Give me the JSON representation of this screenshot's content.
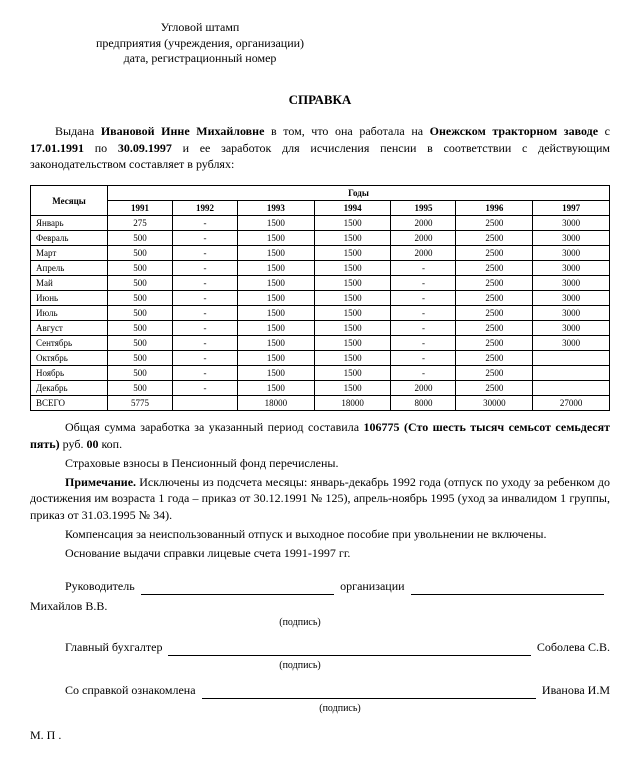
{
  "stamp": {
    "l1": "Угловой штамп",
    "l2": "предприятия (учреждения, организации)",
    "l3": "дата, регистрационный номер"
  },
  "title": "СПРАВКА",
  "intro": {
    "pre": "Выдана ",
    "name": "Ивановой Инне Михайловне",
    "mid1": " в том, что она работала на ",
    "place": "Онежском тракторном заводе",
    "mid2": " с ",
    "d1": "17.01.1991",
    "mid3": " по ",
    "d2": "30.09.1997",
    "post": " и ее заработок для исчисления пенсии в соответствии с действующим законодательством составляет в рублях:"
  },
  "table": {
    "months_header": "Месяцы",
    "years_header": "Годы",
    "years": [
      "1991",
      "1992",
      "1993",
      "1994",
      "1995",
      "1996",
      "1997"
    ],
    "rows": [
      {
        "m": "Январь",
        "v": [
          "275",
          "-",
          "1500",
          "1500",
          "2000",
          "2500",
          "3000"
        ]
      },
      {
        "m": "Февраль",
        "v": [
          "500",
          "-",
          "1500",
          "1500",
          "2000",
          "2500",
          "3000"
        ]
      },
      {
        "m": "Март",
        "v": [
          "500",
          "-",
          "1500",
          "1500",
          "2000",
          "2500",
          "3000"
        ]
      },
      {
        "m": "Апрель",
        "v": [
          "500",
          "-",
          "1500",
          "1500",
          "-",
          "2500",
          "3000"
        ]
      },
      {
        "m": "Май",
        "v": [
          "500",
          "-",
          "1500",
          "1500",
          "-",
          "2500",
          "3000"
        ]
      },
      {
        "m": "Июнь",
        "v": [
          "500",
          "-",
          "1500",
          "1500",
          "-",
          "2500",
          "3000"
        ]
      },
      {
        "m": "Июль",
        "v": [
          "500",
          "-",
          "1500",
          "1500",
          "-",
          "2500",
          "3000"
        ]
      },
      {
        "m": "Август",
        "v": [
          "500",
          "-",
          "1500",
          "1500",
          "-",
          "2500",
          "3000"
        ]
      },
      {
        "m": "Сентябрь",
        "v": [
          "500",
          "-",
          "1500",
          "1500",
          "-",
          "2500",
          "3000"
        ]
      },
      {
        "m": "Октябрь",
        "v": [
          "500",
          "-",
          "1500",
          "1500",
          "-",
          "2500",
          ""
        ]
      },
      {
        "m": "Ноябрь",
        "v": [
          "500",
          "-",
          "1500",
          "1500",
          "-",
          "2500",
          ""
        ]
      },
      {
        "m": "Декабрь",
        "v": [
          "500",
          "-",
          "1500",
          "1500",
          "2000",
          "2500",
          ""
        ]
      },
      {
        "m": "ВСЕГО",
        "v": [
          "5775",
          "",
          "18000",
          "18000",
          "8000",
          "30000",
          "27000"
        ]
      }
    ]
  },
  "body": {
    "p1a": "Общая сумма заработка за указанный период составила ",
    "p1b": "106775 (Сто шесть тысяч семьсот семьдесят пять)",
    "p1c": " руб. ",
    "p1d": "00",
    "p1e": " коп.",
    "p2": "Страховые взносы в Пенсионный фонд перечислены.",
    "p3a": "Примечание.",
    "p3b": " Исключены из подсчета месяцы: январь-декабрь 1992 года (отпуск по уходу за ребенком до достижения им возраста 1 года – приказ от 30.12.1991 № 125), апрель-ноябрь 1995 (уход за инвалидом 1 группы, приказ от 31.03.1995 № 34).",
    "p4": "Компенсация за неиспользованный отпуск и выходное пособие при увольнении не включены.",
    "p5": "Основание выдачи справки лицевые счета 1991-1997 гг."
  },
  "sign": {
    "role1": "Руководитель",
    "org": "организации",
    "name1": "Михайлов В.В.",
    "role2": "Главный бухгалтер",
    "name2": "Соболева С.В.",
    "ack": "Со справкой ознакомлена",
    "name3": "Иванова И.М",
    "sub": "(подпись)",
    "mp": "М. П ."
  }
}
